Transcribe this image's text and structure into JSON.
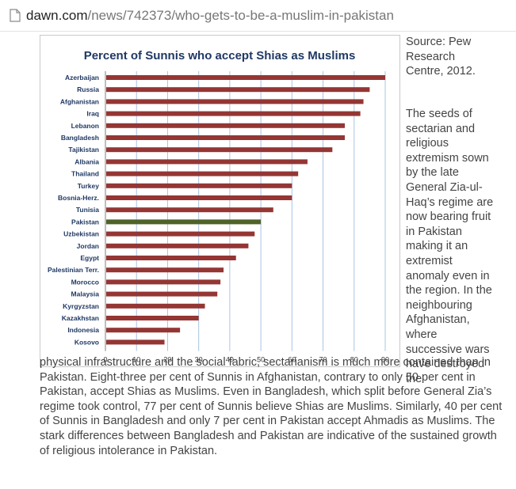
{
  "browser": {
    "url_domain": "dawn.com",
    "url_path": "/news/742373/who-gets-to-be-a-muslim-in-pakistan"
  },
  "article": {
    "source_caption": "Source: Pew Research Centre, 2012.",
    "para_right": "The seeds of sectarian and religious extremism sown by the late General Zia-ul-Haq’s regime are now bearing fruit in Pakistan making it an extremist anomaly even in the region. In the neighbouring Afghanistan, where successive wars have destroyed the",
    "para_bottom": "physical infrastructure and the social fabric, sectarianism is much more contained than in Pakistan. Eight-three per cent of Sunnis in Afghanistan, contrary to only 50 per cent in Pakistan, accept Shias as Muslims. Even in Bangladesh, which split before General Zia’s regime took control, 77 per cent of Sunnis believe Shias are Muslims. Similarly, 40 per cent of Sunnis in Bangladesh and only 7 per cent in Pakistan accept Ahmadis as Muslims. The stark differences between Bangladesh and Pakistan are indicative of the sustained growth of religious intolerance in Pakistan."
  },
  "colors": {
    "bar_default": "#943634",
    "bar_highlight": "#4f6228",
    "title": "#1f3864",
    "gridline": "#a9c4e2"
  },
  "chart_data": {
    "type": "bar",
    "orientation": "horizontal",
    "title": "Percent of Sunnis who accept Shias as Muslims",
    "categories": [
      "Azerbaijan",
      "Russia",
      "Afghanistan",
      "Iraq",
      "Lebanon",
      "Bangladesh",
      "Tajikistan",
      "Albania",
      "Thailand",
      "Turkey",
      "Bosnia-Herz.",
      "Tunisia",
      "Pakistan",
      "Uzbekistan",
      "Jordan",
      "Egypt",
      "Palestinian Terr.",
      "Morocco",
      "Malaysia",
      "Kyrgyzstan",
      "Kazakhstan",
      "Indonesia",
      "Kosovo"
    ],
    "values": [
      90,
      85,
      83,
      82,
      77,
      77,
      73,
      65,
      62,
      60,
      60,
      54,
      50,
      48,
      46,
      42,
      38,
      37,
      36,
      32,
      30,
      24,
      19
    ],
    "highlight": "Pakistan",
    "xlim": [
      0,
      90
    ],
    "xticks": [
      0,
      10,
      20,
      30,
      40,
      50,
      60,
      70,
      80,
      90
    ],
    "grid": true
  }
}
